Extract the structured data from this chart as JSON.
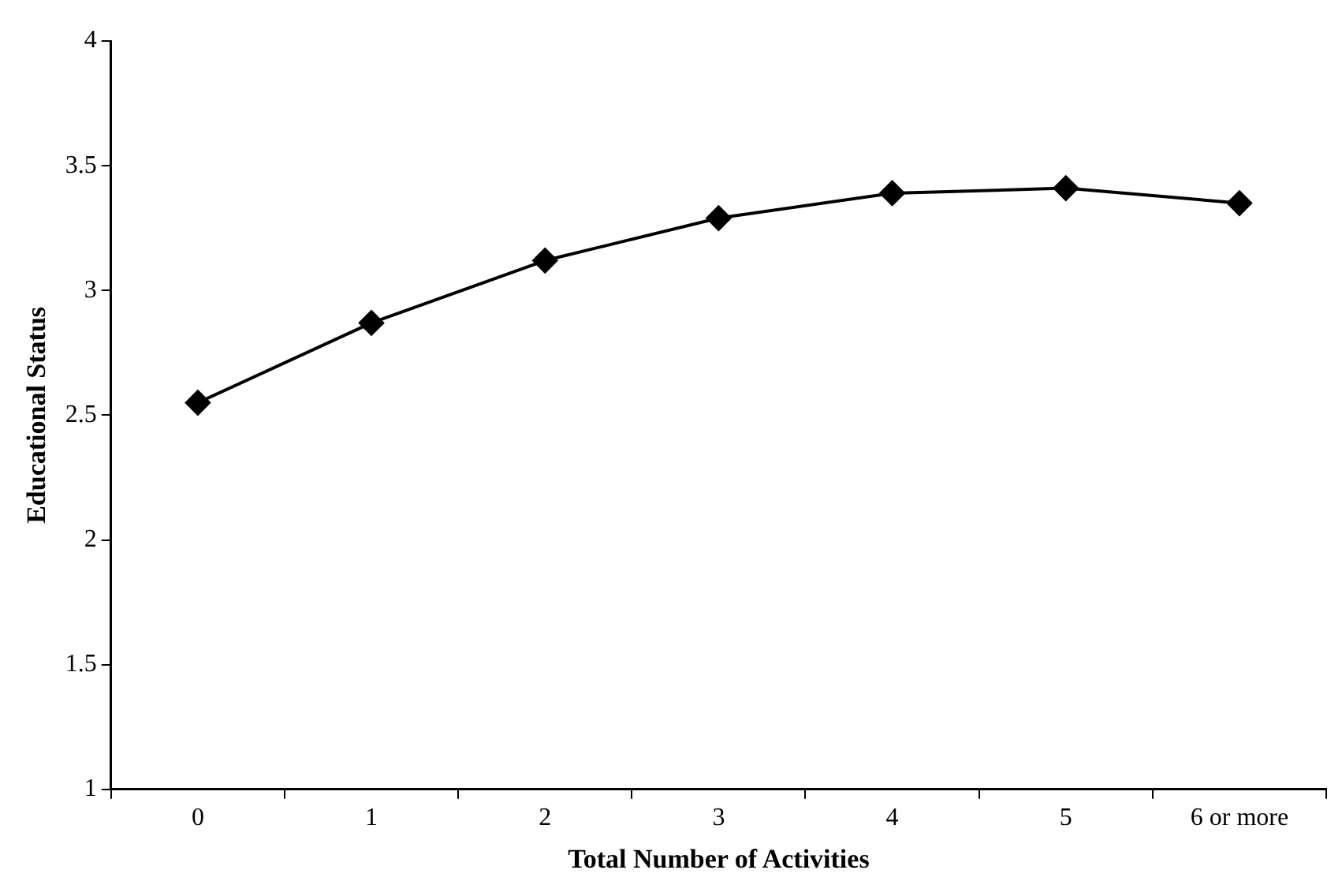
{
  "chart_data": {
    "type": "line",
    "xlabel": "Total Number of Activities",
    "ylabel": "Educational Status",
    "categories": [
      "0",
      "1",
      "2",
      "3",
      "4",
      "5",
      "6 or more"
    ],
    "series": [
      {
        "color": "#000000",
        "values": [
          2.55,
          2.87,
          3.12,
          3.29,
          3.39,
          3.41,
          3.35
        ]
      }
    ],
    "ylim": [
      1,
      4
    ],
    "yticks": [
      1,
      1.5,
      2,
      2.5,
      3,
      3.5,
      4
    ],
    "grid": false,
    "legend": false,
    "marker": "diamond",
    "line_style": "solid"
  }
}
